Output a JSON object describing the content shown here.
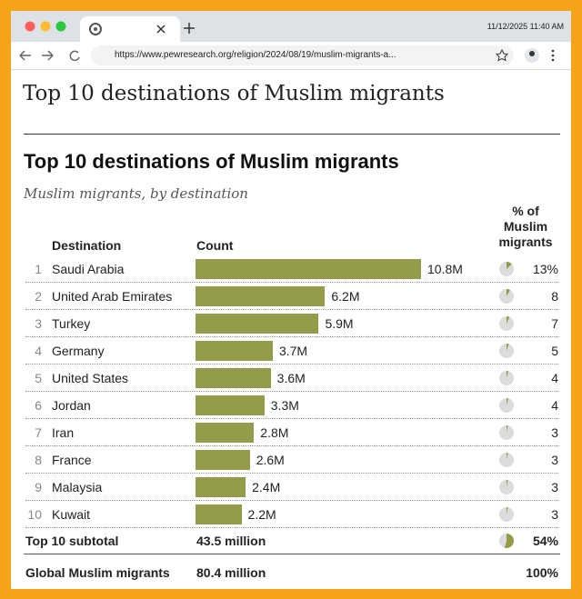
{
  "browser": {
    "date": "11/12/2025 11:40 AM",
    "url": "https://www.pewresearch.org/religion/2024/08/19/muslim-migrants-a..."
  },
  "page": {
    "heading": "Top 10 destinations of Muslim migrants"
  },
  "chart_data": {
    "type": "bar",
    "title": "Top 10 destinations of Muslim migrants",
    "subtitle": "Muslim migrants, by destination",
    "columns": [
      "Destination",
      "Count",
      "% of Muslim migrants"
    ],
    "ranks": [
      1,
      2,
      3,
      4,
      5,
      6,
      7,
      8,
      9,
      10
    ],
    "categories": [
      "Saudi Arabia",
      "United Arab Emirates",
      "Turkey",
      "Germany",
      "United States",
      "Jordan",
      "Iran",
      "France",
      "Malaysia",
      "Kuwait"
    ],
    "values": [
      10.8,
      6.2,
      5.9,
      3.7,
      3.6,
      3.3,
      2.8,
      2.6,
      2.4,
      2.2
    ],
    "value_labels": [
      "10.8M",
      "6.2M",
      "5.9M",
      "3.7M",
      "3.6M",
      "3.3M",
      "2.8M",
      "2.6M",
      "2.4M",
      "2.2M"
    ],
    "color": "#939b48",
    "share": {
      "values": [
        13,
        8,
        7,
        5,
        4,
        4,
        3,
        3,
        3,
        3
      ],
      "value_labels": [
        "13%",
        "8",
        "7",
        "5",
        "4",
        "4",
        "3",
        "3",
        "3",
        "3"
      ]
    },
    "subtotal": {
      "label": "Top 10 subtotal",
      "value": 43.5,
      "value_label": "43.5 million",
      "share": 54,
      "share_label": "54%"
    },
    "total": {
      "label": "Global Muslim migrants",
      "value": 80.4,
      "value_label": "80.4 million",
      "share": 100,
      "share_label": "100%"
    }
  }
}
